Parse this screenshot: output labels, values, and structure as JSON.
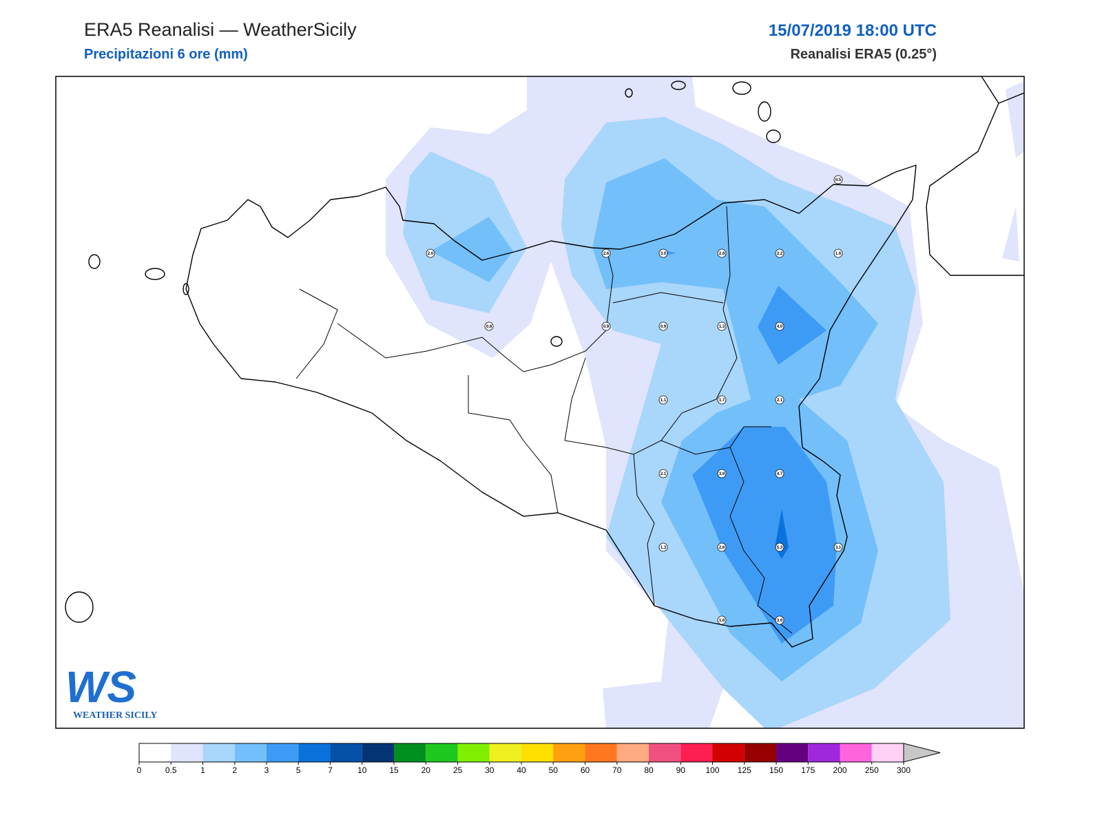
{
  "header": {
    "title": "ERA5 Reanalisi — WeatherSicily",
    "subtitle": "Precipitazioni 6 ore (mm)",
    "datetime": "15/07/2019 18:00 UTC",
    "source": "Reanalisi ERA5 (0.25°)"
  },
  "map": {
    "points": [
      "0.5",
      "2.0",
      "2.6",
      "3.0",
      "2.8",
      "2.2",
      "1.6",
      "0.8",
      "0.9",
      "0.9",
      "1.3",
      "4.0",
      "1.1",
      "1.7",
      "2.1",
      "2.1",
      "3.9",
      "4.7",
      "1.3",
      "2.6",
      "5.3",
      "3.1",
      "1.6",
      "3.6"
    ]
  },
  "colorbar": {
    "ticks": [
      0,
      0.5,
      1,
      2,
      3,
      5,
      7,
      10,
      15,
      20,
      25,
      30,
      40,
      50,
      60,
      70,
      80,
      90,
      100,
      125,
      150,
      175,
      200,
      250,
      300
    ],
    "colors": [
      "#ffffff",
      "#e0e4fc",
      "#a9d6fb",
      "#73bffa",
      "#3e9bf5",
      "#0a73db",
      "#0550a8",
      "#053474",
      "#009020",
      "#1ec81e",
      "#80f000",
      "#f0f020",
      "#ffe000",
      "#ffa010",
      "#ff7820",
      "#ffaa80",
      "#f05080",
      "#ff1e50",
      "#d20000",
      "#960000",
      "#640080",
      "#a028dc",
      "#ff64dc",
      "#ffd2f5"
    ],
    "extend_color": "#c8c8c8"
  },
  "logo": {
    "mark": "WS",
    "text": "WEATHER SICILY"
  }
}
